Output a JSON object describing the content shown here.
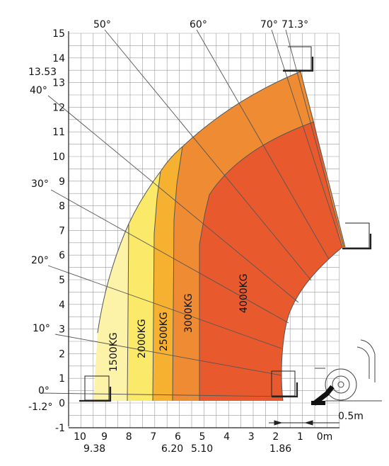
{
  "diagram": {
    "y_axis": {
      "ticks": [
        "15",
        "14",
        "13",
        "12",
        "11",
        "10",
        "9",
        "8",
        "7",
        "6",
        "5",
        "4",
        "3",
        "2",
        "1",
        "0",
        "-1"
      ],
      "special": [
        "13.53",
        "-1.2°"
      ]
    },
    "x_axis": {
      "ticks": [
        "10",
        "9",
        "8",
        "7",
        "6",
        "5",
        "4",
        "3",
        "2",
        "1",
        "0m"
      ],
      "special": [
        "9.38",
        "6.20",
        "5.10",
        "1.86"
      ]
    },
    "angles": [
      "0°",
      "10°",
      "20°",
      "30°",
      "40°",
      "50°",
      "60°",
      "70°",
      "71.3°"
    ],
    "zones": [
      {
        "label": "1500KG",
        "color": "#fcf2a8"
      },
      {
        "label": "2000KG",
        "color": "#fbe96a"
      },
      {
        "label": "2500KG",
        "color": "#f6b130"
      },
      {
        "label": "3000KG",
        "color": "#ef8c33"
      },
      {
        "label": "4000KG",
        "color": "#e85a2e"
      }
    ],
    "scale_marker": "0.5m"
  }
}
